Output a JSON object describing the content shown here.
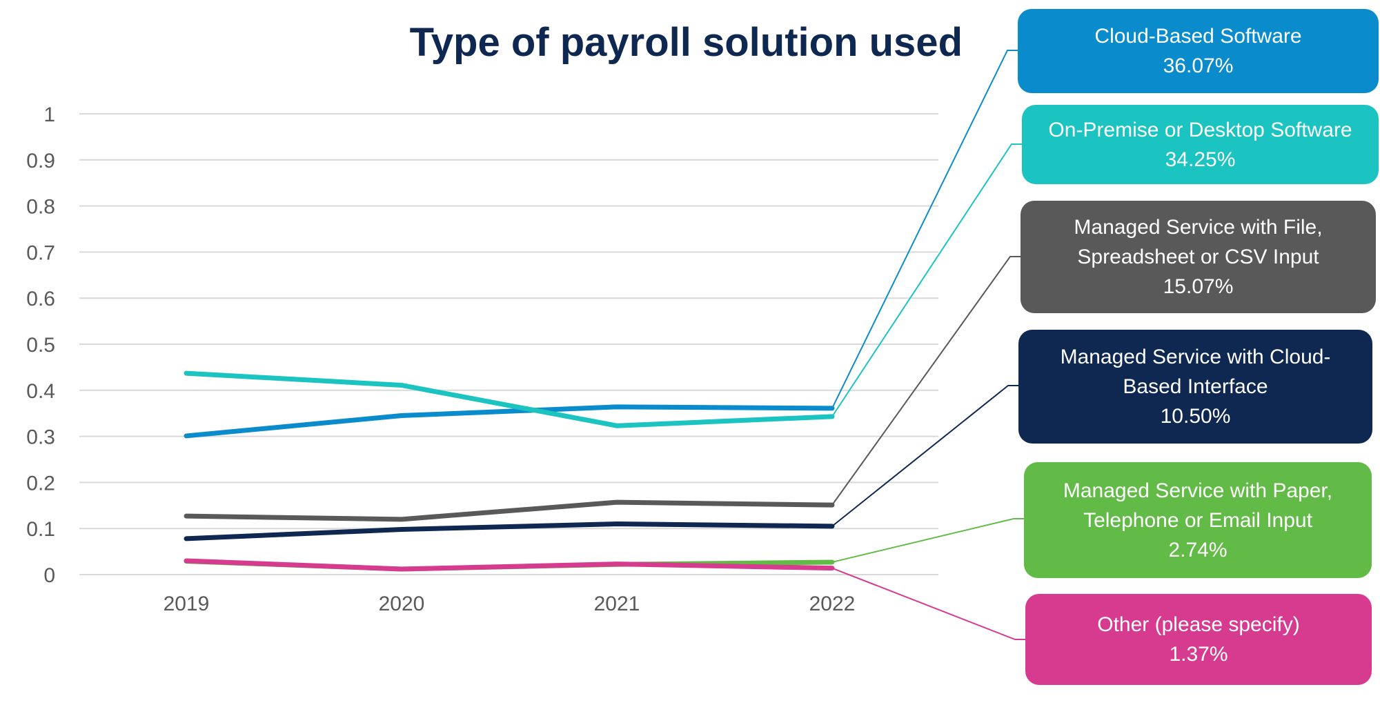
{
  "chart_data": {
    "type": "line",
    "title": "Type of payroll solution used",
    "categories": [
      "2019",
      "2020",
      "2021",
      "2022"
    ],
    "ylim": [
      0,
      1
    ],
    "yticks": [
      "0",
      "0.1",
      "0.2",
      "0.3",
      "0.4",
      "0.5",
      "0.6",
      "0.7",
      "0.8",
      "0.9",
      "1"
    ],
    "grid": true,
    "legend_placement": "right (callout boxes)",
    "series": [
      {
        "name": "Cloud-Based Software",
        "label_lines": [
          "Cloud-Based Software"
        ],
        "pct": "36.07%",
        "color": "#0a8ccc",
        "values": [
          0.301,
          0.345,
          0.364,
          0.361
        ]
      },
      {
        "name": "On-Premise or Desktop Software",
        "label_lines": [
          "On-Premise or Desktop Software"
        ],
        "pct": "34.25%",
        "color": "#1bc3c1",
        "values": [
          0.437,
          0.411,
          0.323,
          0.343
        ]
      },
      {
        "name": "Managed Service with File, Spreadsheet or CSV Input",
        "label_lines": [
          "Managed Service with File,",
          "Spreadsheet or CSV Input"
        ],
        "pct": "15.07%",
        "color": "#595959",
        "values": [
          0.127,
          0.12,
          0.157,
          0.151
        ]
      },
      {
        "name": "Managed Service with Cloud-Based Interface",
        "label_lines": [
          "Managed Service with Cloud-",
          "Based Interface"
        ],
        "pct": "10.50%",
        "color": "#0e2851",
        "values": [
          0.078,
          0.098,
          0.11,
          0.105
        ]
      },
      {
        "name": "Managed Service with Paper, Telephone or Email Input",
        "label_lines": [
          "Managed Service with Paper,",
          "Telephone or Email Input"
        ],
        "pct": "2.74%",
        "color": "#62bb46",
        "values": [
          0.029,
          0.012,
          0.022,
          0.027
        ]
      },
      {
        "name": "Other (please specify)",
        "label_lines": [
          "Other (please specify)"
        ],
        "pct": "1.37%",
        "color": "#d63b8f",
        "values": [
          0.03,
          0.012,
          0.023,
          0.014
        ]
      }
    ]
  }
}
